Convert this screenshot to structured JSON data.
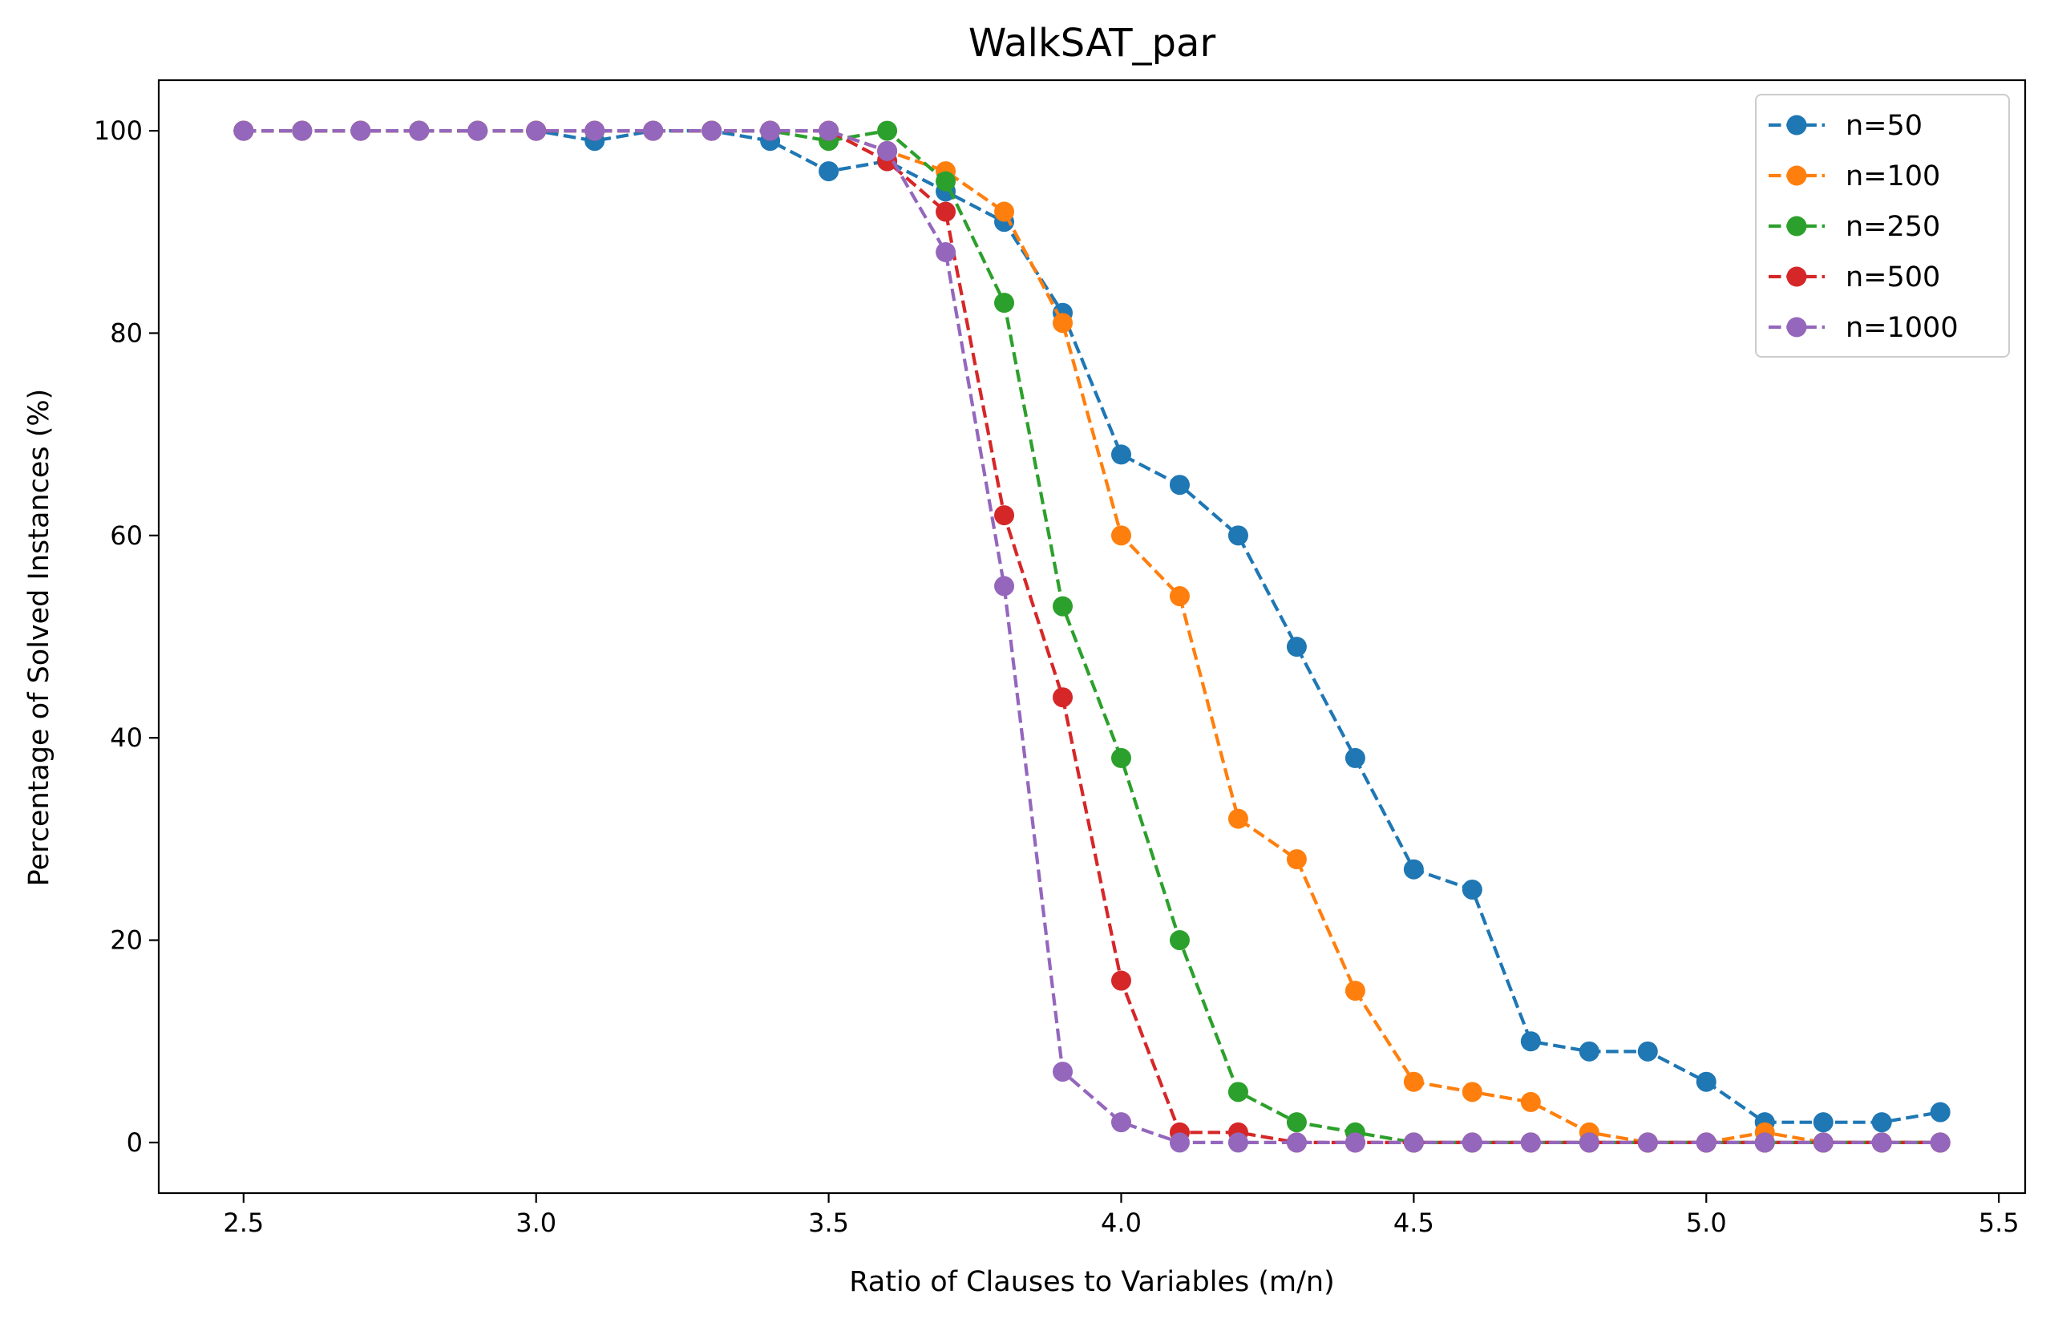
{
  "chart_data": {
    "type": "line",
    "title": "WalkSAT_par",
    "xlabel": "Ratio of Clauses to Variables (m/n)",
    "ylabel": "Percentage of Solved Instances (%)",
    "xlim": [
      2.355,
      5.545
    ],
    "ylim": [
      -5,
      105
    ],
    "xticks": [
      2.5,
      3.0,
      3.5,
      4.0,
      4.5,
      5.0,
      5.5
    ],
    "xtick_labels": [
      "2.5",
      "3.0",
      "3.5",
      "4.0",
      "4.5",
      "5.0",
      "5.5"
    ],
    "yticks": [
      0,
      20,
      40,
      60,
      80,
      100
    ],
    "ytick_labels": [
      "0",
      "20",
      "40",
      "60",
      "80",
      "100"
    ],
    "grid": false,
    "legend_position": "top-right",
    "line_style": "dashed",
    "marker": "circle",
    "x": [
      2.5,
      2.6,
      2.7,
      2.8,
      2.9,
      3.0,
      3.1,
      3.2,
      3.3,
      3.4,
      3.5,
      3.6,
      3.7,
      3.8,
      3.9,
      4.0,
      4.1,
      4.2,
      4.3,
      4.4,
      4.5,
      4.6,
      4.7,
      4.8,
      4.9,
      5.0,
      5.1,
      5.2,
      5.3,
      5.4
    ],
    "series": [
      {
        "name": "n=50",
        "color": "#1f77b4",
        "values": [
          100,
          100,
          100,
          100,
          100,
          100,
          99,
          100,
          100,
          99,
          96,
          97,
          94,
          91,
          82,
          68,
          65,
          60,
          49,
          38,
          27,
          25,
          10,
          9,
          9,
          6,
          2,
          2,
          2,
          3
        ]
      },
      {
        "name": "n=100",
        "color": "#ff7f0e",
        "values": [
          100,
          100,
          100,
          100,
          100,
          100,
          100,
          100,
          100,
          100,
          100,
          98,
          96,
          92,
          81,
          60,
          54,
          32,
          28,
          15,
          6,
          5,
          4,
          1,
          0,
          0,
          1,
          0,
          0,
          0
        ]
      },
      {
        "name": "n=250",
        "color": "#2ca02c",
        "values": [
          100,
          100,
          100,
          100,
          100,
          100,
          100,
          100,
          100,
          100,
          99,
          100,
          95,
          83,
          53,
          38,
          20,
          5,
          2,
          1,
          0,
          0,
          0,
          0,
          0,
          0,
          0,
          0,
          0,
          0
        ]
      },
      {
        "name": "n=500",
        "color": "#d62728",
        "values": [
          100,
          100,
          100,
          100,
          100,
          100,
          100,
          100,
          100,
          100,
          100,
          97,
          92,
          62,
          44,
          16,
          1,
          1,
          0,
          0,
          0,
          0,
          0,
          0,
          0,
          0,
          0,
          0,
          0,
          0
        ]
      },
      {
        "name": "n=1000",
        "color": "#9467bd",
        "values": [
          100,
          100,
          100,
          100,
          100,
          100,
          100,
          100,
          100,
          100,
          100,
          98,
          88,
          55,
          7,
          2,
          0,
          0,
          0,
          0,
          0,
          0,
          0,
          0,
          0,
          0,
          0,
          0,
          0,
          0
        ]
      }
    ]
  }
}
